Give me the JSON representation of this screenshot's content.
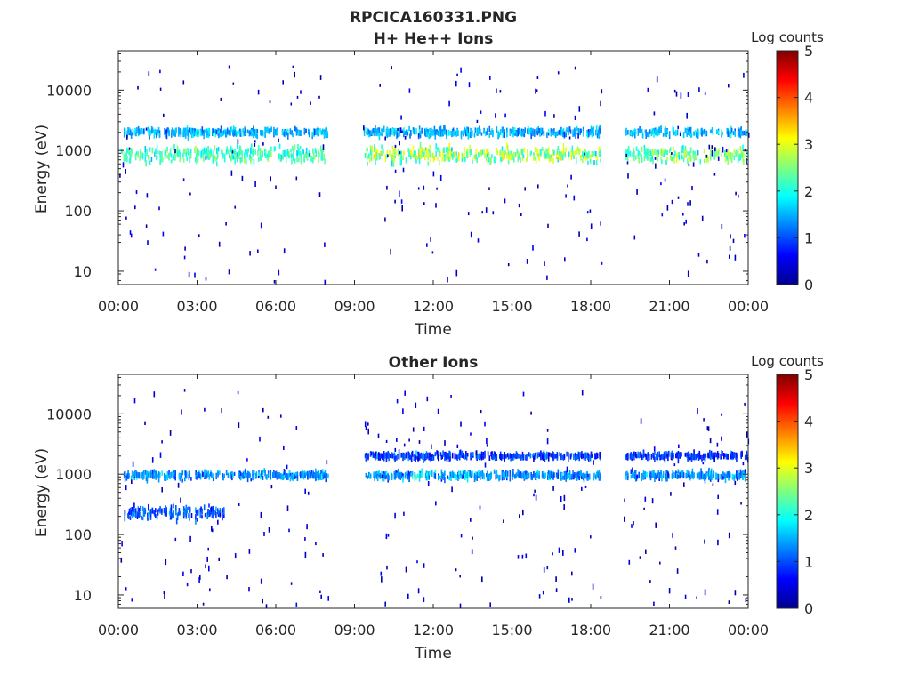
{
  "figure": {
    "title": "RPCICA160331.PNG"
  },
  "chart_data": [
    {
      "type": "heatmap",
      "title": "H+ He++ Ions",
      "xlabel": "Time",
      "ylabel": "Energy (eV)",
      "x_ticks": [
        "00:00",
        "03:00",
        "06:00",
        "09:00",
        "12:00",
        "15:00",
        "18:00",
        "21:00",
        "00:00"
      ],
      "x_range_hours": [
        0,
        24
      ],
      "y_ticks": [
        {
          "value": 10,
          "label": "10"
        },
        {
          "value": 100,
          "label": "100"
        },
        {
          "value": 1000,
          "label": "1000"
        },
        {
          "value": 10000,
          "label": "10000"
        }
      ],
      "y_scale": "log",
      "y_range": [
        6,
        45000
      ],
      "colorbar": {
        "label": "Log counts",
        "ticks": [
          "0",
          "1",
          "2",
          "3",
          "4",
          "5"
        ],
        "range": [
          0,
          5
        ],
        "colormap": "jet"
      },
      "data_gaps_hours": [
        [
          8.05,
          9.3
        ],
        [
          18.4,
          19.25
        ]
      ],
      "bands": [
        {
          "name": "main",
          "energy_center": 850,
          "energy_spread_decades": 0.12,
          "log_counts_typical": 2.2,
          "segments": [
            [
              0.1,
              8.0
            ],
            [
              9.35,
              18.35
            ],
            [
              19.3,
              23.95
            ]
          ]
        },
        {
          "name": "upper",
          "energy_center": 2000,
          "energy_spread_decades": 0.06,
          "log_counts_typical": 1.5,
          "segments": [
            [
              0.2,
              8.0
            ],
            [
              9.35,
              18.35
            ],
            [
              19.3,
              23.95
            ]
          ]
        }
      ],
      "peak_regions": [
        {
          "t_start": 9.4,
          "t_end": 18.3,
          "energy": 950,
          "log_counts": 3.0
        },
        {
          "t_start": 20.3,
          "t_end": 23.9,
          "energy": 950,
          "log_counts": 2.8
        }
      ]
    },
    {
      "type": "heatmap",
      "title": "Other Ions",
      "xlabel": "Time",
      "ylabel": "Energy (eV)",
      "x_ticks": [
        "00:00",
        "03:00",
        "06:00",
        "09:00",
        "12:00",
        "15:00",
        "18:00",
        "21:00",
        "00:00"
      ],
      "x_range_hours": [
        0,
        24
      ],
      "y_ticks": [
        {
          "value": 10,
          "label": "10"
        },
        {
          "value": 100,
          "label": "100"
        },
        {
          "value": 1000,
          "label": "1000"
        },
        {
          "value": 10000,
          "label": "10000"
        }
      ],
      "y_scale": "log",
      "y_range": [
        6,
        45000
      ],
      "colorbar": {
        "label": "Log counts",
        "ticks": [
          "0",
          "1",
          "2",
          "3",
          "4",
          "5"
        ],
        "range": [
          0,
          5
        ],
        "colormap": "jet"
      },
      "data_gaps_hours": [
        [
          8.05,
          9.3
        ],
        [
          18.4,
          19.25
        ]
      ],
      "bands": [
        {
          "name": "low-early",
          "energy_center": 230,
          "energy_spread_decades": 0.1,
          "log_counts_typical": 1.0,
          "segments": [
            [
              0.1,
              4.0
            ]
          ]
        },
        {
          "name": "main",
          "energy_center": 950,
          "energy_spread_decades": 0.06,
          "log_counts_typical": 1.3,
          "segments": [
            [
              0.2,
              8.0
            ],
            [
              9.35,
              18.35
            ],
            [
              19.3,
              23.95
            ]
          ]
        },
        {
          "name": "upper",
          "energy_center": 2000,
          "energy_spread_decades": 0.05,
          "log_counts_typical": 0.9,
          "segments": [
            [
              9.35,
              18.35
            ],
            [
              19.3,
              23.95
            ]
          ]
        }
      ],
      "peak_regions": [
        {
          "t_start": 11.0,
          "t_end": 13.6,
          "energy": 950,
          "log_counts": 1.9
        }
      ]
    }
  ]
}
